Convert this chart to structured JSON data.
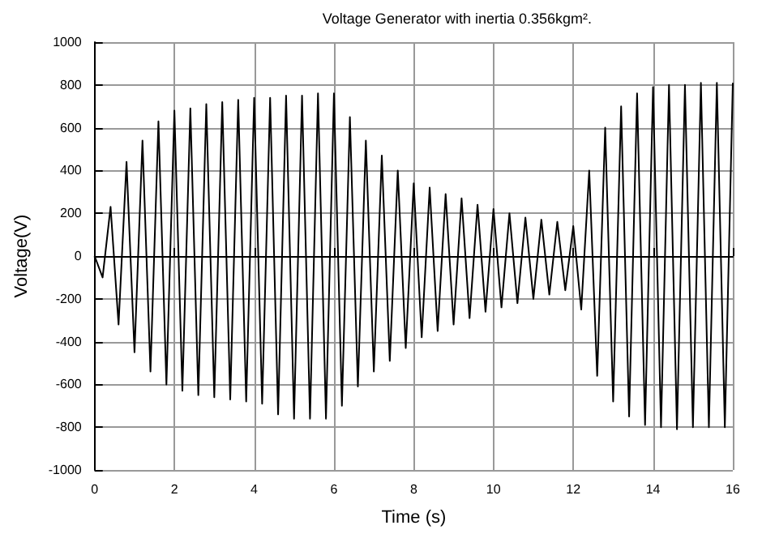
{
  "chart_data": {
    "type": "line",
    "title": "Voltage Generator with inertia 0.356kgm².",
    "xlabel": "Time (s)",
    "ylabel": "Voltage(V)",
    "x": [
      0,
      0.2,
      0.4,
      0.6,
      0.8,
      1,
      1.2,
      1.4,
      1.6,
      1.8,
      2,
      2.2,
      2.4,
      2.6,
      2.8,
      3,
      3.2,
      3.4,
      3.6,
      3.8,
      4,
      4.2,
      4.4,
      4.6,
      4.8,
      5,
      5.2,
      5.4,
      5.6,
      5.8,
      6,
      6.2,
      6.4,
      6.6,
      6.8,
      7,
      7.2,
      7.4,
      7.6,
      7.8,
      8,
      8.2,
      8.4,
      8.6,
      8.8,
      9,
      9.2,
      9.4,
      9.6,
      9.8,
      10,
      10.2,
      10.4,
      10.6,
      10.8,
      11,
      11.2,
      11.4,
      11.6,
      11.8,
      12,
      12.2,
      12.4,
      12.6,
      12.8,
      13,
      13.2,
      13.4,
      13.6,
      13.8,
      14,
      14.2,
      14.4,
      14.6,
      14.8,
      15,
      15.2,
      15.4,
      15.6,
      15.8,
      16
    ],
    "series": [
      {
        "color": "#000000",
        "values": [
          0,
          -100,
          230,
          -320,
          440,
          -450,
          540,
          -540,
          630,
          -600,
          680,
          -630,
          690,
          -650,
          710,
          -660,
          720,
          -670,
          730,
          -680,
          740,
          -690,
          740,
          -740,
          750,
          -760,
          750,
          -760,
          760,
          -760,
          760,
          -700,
          650,
          -610,
          540,
          -540,
          470,
          -490,
          400,
          -430,
          340,
          -380,
          320,
          -350,
          290,
          -320,
          270,
          -290,
          240,
          -260,
          220,
          -240,
          200,
          -220,
          180,
          -200,
          170,
          -180,
          160,
          -160,
          140,
          -250,
          400,
          -560,
          600,
          -680,
          700,
          -750,
          760,
          -790,
          790,
          -800,
          800,
          -810,
          800,
          -800,
          810,
          -800,
          810,
          -800,
          810
        ]
      }
    ],
    "xlim": [
      0,
      16
    ],
    "xticks": [
      0,
      2,
      4,
      6,
      8,
      10,
      12,
      14,
      16
    ],
    "ylim": [
      -1000,
      1000
    ],
    "yticks": [
      -1000,
      -800,
      -600,
      -400,
      -200,
      0,
      200,
      400,
      600,
      800,
      1000
    ],
    "grid": true,
    "marker": "none",
    "line_style": "solid"
  }
}
